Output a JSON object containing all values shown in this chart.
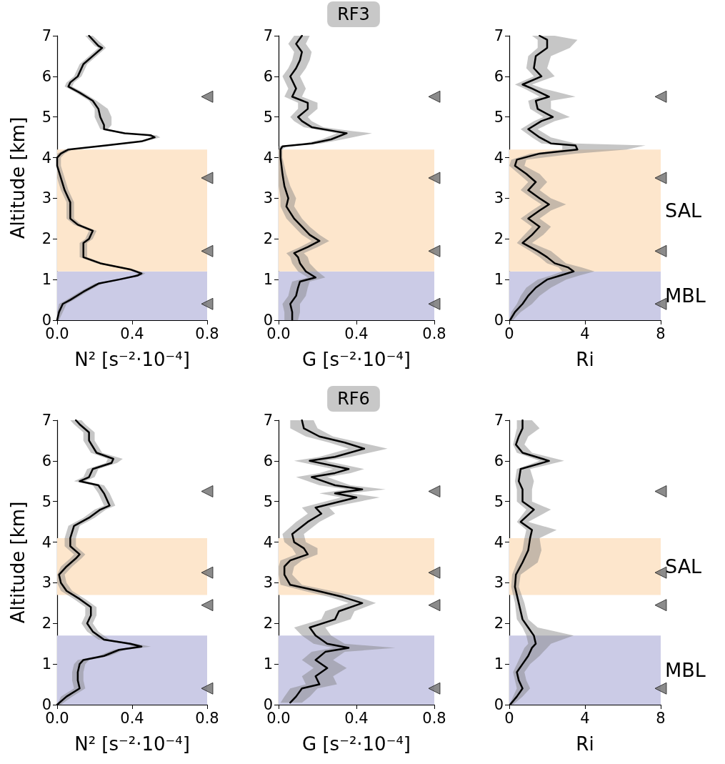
{
  "chart_data": [
    {
      "type": "line",
      "orientation": "horizontal",
      "xlabel": "N² [s⁻²·10⁻⁴]",
      "ylabel": "Altitude [km]",
      "xlim": [
        0,
        0.8
      ],
      "xticks": [
        {
          "value": 0,
          "label": "0.0"
        },
        {
          "value": 0.4,
          "label": "0.4"
        },
        {
          "value": 0.8,
          "label": "0.8"
        }
      ],
      "ylim": [
        0,
        7
      ],
      "yticks": [
        0,
        1,
        2,
        3,
        4,
        5,
        6,
        7
      ],
      "bands": [
        {
          "axis": "y",
          "from": 0,
          "to": 1.2,
          "color": "#cbcbe6"
        },
        {
          "axis": "y",
          "from": 1.2,
          "to": 4.2,
          "color": "#fde6cc"
        }
      ],
      "series": [
        {
          "color": "#000000",
          "x": [
            0,
            0.2,
            0.4,
            0.5,
            0.7,
            0.9,
            1.0,
            1.1,
            1.15,
            1.25,
            1.4,
            1.55,
            1.6,
            1.7,
            1.9,
            2.0,
            2.2,
            2.35,
            2.5,
            2.9,
            3.2,
            3.5,
            3.8,
            4.0,
            4.1,
            4.2,
            4.3,
            4.4,
            4.5,
            4.55,
            4.6,
            4.7,
            4.8,
            5.0,
            5.2,
            5.4,
            5.6,
            5.75,
            5.85,
            6.0,
            6.3,
            6.5,
            6.7,
            6.75,
            7.0
          ],
          "values": [
            0,
            0.01,
            0.03,
            0.07,
            0.14,
            0.22,
            0.33,
            0.43,
            0.45,
            0.39,
            0.23,
            0.14,
            0.14,
            0.14,
            0.14,
            0.17,
            0.19,
            0.11,
            0.07,
            0.07,
            0.04,
            0.02,
            0,
            0,
            0.02,
            0.06,
            0.26,
            0.45,
            0.52,
            0.5,
            0.36,
            0.25,
            0.25,
            0.23,
            0.22,
            0.19,
            0.12,
            0.06,
            0.07,
            0.11,
            0.14,
            0.19,
            0.24,
            0.22,
            0.17
          ],
          "lower": [
            0,
            0,
            0.01,
            0.05,
            0.12,
            0.2,
            0.31,
            0.41,
            0.43,
            0.37,
            0.21,
            0.12,
            0.12,
            0.12,
            0.12,
            0.15,
            0.17,
            0.09,
            0.05,
            0.05,
            0.02,
            0,
            0,
            0,
            0,
            0.04,
            0.24,
            0.43,
            0.5,
            0.48,
            0.34,
            0.23,
            0.22,
            0.2,
            0.2,
            0.17,
            0.1,
            0.04,
            0.05,
            0.09,
            0.12,
            0.17,
            0.22,
            0.2,
            0.15
          ],
          "upper": [
            0.01,
            0.03,
            0.05,
            0.09,
            0.16,
            0.24,
            0.35,
            0.45,
            0.47,
            0.41,
            0.25,
            0.16,
            0.16,
            0.16,
            0.16,
            0.19,
            0.21,
            0.13,
            0.09,
            0.09,
            0.06,
            0.04,
            0.02,
            0.02,
            0.04,
            0.08,
            0.28,
            0.47,
            0.55,
            0.53,
            0.38,
            0.27,
            0.29,
            0.29,
            0.27,
            0.21,
            0.14,
            0.08,
            0.09,
            0.13,
            0.16,
            0.21,
            0.26,
            0.25,
            0.19
          ]
        },
        {
          "type": "scatter",
          "marker": "triangle",
          "color": "#6e6e6e",
          "x": [
            0.4,
            1.7,
            3.5,
            5.5
          ],
          "values": [
            0.8,
            0.8,
            0.8,
            0.8
          ]
        }
      ]
    },
    {
      "type": "line",
      "orientation": "horizontal",
      "title": "RF3",
      "xlabel": "G [s⁻²·10⁻⁴]",
      "xlim": [
        0,
        0.8
      ],
      "xticks": [
        {
          "value": 0,
          "label": "0.0"
        },
        {
          "value": 0.4,
          "label": "0.4"
        },
        {
          "value": 0.8,
          "label": "0.8"
        }
      ],
      "ylim": [
        0,
        7
      ],
      "yticks": [
        0,
        1,
        2,
        3,
        4,
        5,
        6,
        7
      ],
      "bands": [
        {
          "axis": "y",
          "from": 0,
          "to": 1.2,
          "color": "#cbcbe6"
        },
        {
          "axis": "y",
          "from": 1.2,
          "to": 4.2,
          "color": "#fde6cc"
        }
      ],
      "series": [
        {
          "color": "#000000",
          "x": [
            0,
            0.2,
            0.4,
            0.6,
            0.8,
            0.95,
            1.05,
            1.2,
            1.4,
            1.55,
            1.65,
            1.8,
            1.95,
            2.1,
            2.3,
            2.5,
            2.8,
            3.0,
            3.3,
            3.6,
            4.0,
            4.2,
            4.28,
            4.35,
            4.45,
            4.6,
            4.65,
            4.75,
            4.9,
            5.0,
            5.2,
            5.35,
            5.5,
            5.7,
            5.9,
            6.0,
            6.2,
            6.4,
            6.6,
            6.8,
            7.0
          ],
          "values": [
            0.07,
            0.07,
            0.06,
            0.09,
            0.1,
            0.11,
            0.19,
            0.14,
            0.11,
            0.1,
            0.08,
            0.15,
            0.21,
            0.16,
            0.12,
            0.08,
            0.04,
            0.05,
            0.03,
            0.02,
            0.01,
            0.01,
            0.02,
            0.17,
            0.27,
            0.35,
            0.29,
            0.17,
            0.12,
            0.1,
            0.15,
            0.15,
            0.07,
            0.09,
            0.07,
            0.06,
            0.09,
            0.11,
            0.12,
            0.09,
            0.12
          ],
          "lower": [
            0.03,
            0.03,
            0.02,
            0.05,
            0.06,
            0.07,
            0.15,
            0.1,
            0.07,
            0.06,
            0.04,
            0.11,
            0.17,
            0.12,
            0.08,
            0.04,
            0.01,
            0.01,
            0,
            0,
            0,
            0,
            0,
            0.13,
            0.22,
            0.3,
            0.24,
            0.13,
            0.08,
            0.06,
            0.1,
            0.1,
            0.03,
            0.05,
            0.03,
            0.02,
            0.05,
            0.07,
            0.08,
            0.05,
            0.08
          ],
          "upper": [
            0.1,
            0.11,
            0.11,
            0.14,
            0.15,
            0.16,
            0.24,
            0.2,
            0.16,
            0.15,
            0.13,
            0.2,
            0.26,
            0.21,
            0.16,
            0.12,
            0.08,
            0.09,
            0.06,
            0.04,
            0.02,
            0.02,
            0.04,
            0.22,
            0.33,
            0.48,
            0.38,
            0.23,
            0.17,
            0.15,
            0.2,
            0.2,
            0.12,
            0.14,
            0.12,
            0.11,
            0.14,
            0.16,
            0.17,
            0.14,
            0.16
          ]
        },
        {
          "type": "scatter",
          "marker": "triangle",
          "color": "#6e6e6e",
          "x": [
            0.4,
            1.7,
            3.5,
            5.5
          ],
          "values": [
            0.8,
            0.8,
            0.8,
            0.8
          ]
        }
      ]
    },
    {
      "type": "line",
      "orientation": "horizontal",
      "xlabel": "Ri",
      "xlim": [
        0,
        8
      ],
      "xticks": [
        0,
        4,
        8
      ],
      "ylim": [
        0,
        7
      ],
      "yticks": [
        0,
        1,
        2,
        3,
        4,
        5,
        6,
        7
      ],
      "bands": [
        {
          "axis": "y",
          "from": 0,
          "to": 1.2,
          "label": "MBL",
          "color": "#cbcbe6"
        },
        {
          "axis": "y",
          "from": 1.2,
          "to": 4.2,
          "label": "SAL",
          "color": "#fde6cc"
        }
      ],
      "series": [
        {
          "color": "#000000",
          "x": [
            0,
            0.2,
            0.4,
            0.6,
            0.8,
            1.0,
            1.1,
            1.2,
            1.3,
            1.4,
            1.55,
            1.7,
            1.9,
            2.1,
            2.3,
            2.5,
            2.7,
            2.85,
            3.0,
            3.2,
            3.4,
            3.6,
            3.8,
            3.95,
            4.1,
            4.2,
            4.3,
            4.35,
            4.5,
            4.7,
            4.9,
            5.0,
            5.2,
            5.4,
            5.5,
            5.7,
            5.8,
            6.0,
            6.2,
            6.5,
            6.7,
            6.9,
            7.0
          ],
          "values": [
            0.04,
            0.3,
            0.7,
            1.0,
            1.4,
            2.0,
            2.7,
            3.4,
            3.1,
            2.4,
            2.0,
            1.5,
            0.7,
            1.2,
            1.6,
            1.0,
            1.6,
            2.1,
            1.6,
            1.0,
            1.4,
            0.9,
            0.3,
            0.4,
            1.6,
            3.6,
            3.5,
            2.2,
            1.6,
            1.0,
            1.7,
            2.3,
            1.5,
            1.4,
            2.1,
            1.2,
            0.7,
            1.7,
            1.3,
            1.4,
            2.0,
            2.0,
            1.6
          ],
          "lower": [
            0,
            0.1,
            0.4,
            0.6,
            0.9,
            1.5,
            2.2,
            2.8,
            2.6,
            2.0,
            1.6,
            1.1,
            0.4,
            0.8,
            1.2,
            0.6,
            1.2,
            1.7,
            1.2,
            0.6,
            1.0,
            0.5,
            0,
            0.1,
            1.1,
            2.8,
            2.8,
            1.7,
            1.2,
            0.6,
            1.3,
            1.8,
            1.1,
            1.0,
            1.6,
            0.8,
            0.3,
            1.3,
            0.9,
            1.0,
            1.5,
            1.5,
            1.2
          ],
          "upper": [
            0.2,
            0.6,
            1.2,
            1.6,
            2.2,
            3.0,
            3.7,
            4.5,
            3.8,
            3.0,
            2.6,
            2.2,
            1.2,
            1.8,
            2.2,
            1.6,
            2.2,
            3.0,
            2.2,
            1.6,
            2.0,
            1.6,
            0.8,
            0.9,
            3.5,
            6.2,
            7.2,
            3.5,
            2.2,
            1.5,
            2.4,
            3.2,
            2.2,
            2.2,
            3.5,
            1.8,
            1.2,
            2.4,
            2.0,
            2.2,
            3.2,
            3.6,
            2.4
          ]
        },
        {
          "type": "scatter",
          "marker": "triangle",
          "color": "#6e6e6e",
          "x": [
            0.4,
            1.7,
            3.5,
            5.5
          ],
          "values": [
            8,
            8,
            8,
            8
          ]
        }
      ]
    },
    {
      "type": "line",
      "orientation": "horizontal",
      "xlabel": "N² [s⁻²·10⁻⁴]",
      "ylabel": "Altitude [km]",
      "xlim": [
        0,
        0.8
      ],
      "xticks": [
        {
          "value": 0,
          "label": "0.0"
        },
        {
          "value": 0.4,
          "label": "0.4"
        },
        {
          "value": 0.8,
          "label": "0.8"
        }
      ],
      "ylim": [
        0,
        7
      ],
      "yticks": [
        0,
        1,
        2,
        3,
        4,
        5,
        6,
        7
      ],
      "bands": [
        {
          "axis": "y",
          "from": 0,
          "to": 1.7,
          "color": "#cbcbe6"
        },
        {
          "axis": "y",
          "from": 2.7,
          "to": 4.1,
          "color": "#fde6cc"
        }
      ],
      "series": [
        {
          "color": "#000000",
          "x": [
            0,
            0.2,
            0.4,
            0.6,
            0.8,
            1.0,
            1.1,
            1.2,
            1.35,
            1.43,
            1.5,
            1.6,
            1.8,
            2.0,
            2.2,
            2.4,
            2.6,
            2.8,
            3.0,
            3.2,
            3.4,
            3.6,
            3.7,
            3.9,
            4.1,
            4.4,
            4.6,
            4.8,
            4.9,
            5.1,
            5.2,
            5.4,
            5.5,
            5.6,
            5.8,
            5.95,
            6.05,
            6.2,
            6.5,
            6.7,
            6.9,
            7.0
          ],
          "values": [
            0,
            0.05,
            0.12,
            0.11,
            0.11,
            0.12,
            0.14,
            0.25,
            0.33,
            0.45,
            0.39,
            0.25,
            0.19,
            0.16,
            0.18,
            0.18,
            0.12,
            0.05,
            0.02,
            0.01,
            0.05,
            0.1,
            0.12,
            0.07,
            0.07,
            0.09,
            0.17,
            0.23,
            0.28,
            0.26,
            0.25,
            0.22,
            0.12,
            0.17,
            0.19,
            0.29,
            0.3,
            0.21,
            0.17,
            0.17,
            0.12,
            0.1
          ],
          "lower": [
            0,
            0.02,
            0.09,
            0.08,
            0.08,
            0.09,
            0.11,
            0.22,
            0.3,
            0.41,
            0.36,
            0.22,
            0.16,
            0.13,
            0.15,
            0.15,
            0.09,
            0.02,
            0,
            0,
            0.02,
            0.07,
            0.09,
            0.04,
            0.04,
            0.06,
            0.14,
            0.2,
            0.25,
            0.23,
            0.22,
            0.19,
            0.09,
            0.14,
            0.16,
            0.26,
            0.27,
            0.18,
            0.14,
            0.14,
            0.09,
            0.07
          ],
          "upper": [
            0.02,
            0.08,
            0.15,
            0.14,
            0.14,
            0.15,
            0.17,
            0.28,
            0.36,
            0.5,
            0.42,
            0.28,
            0.22,
            0.19,
            0.21,
            0.21,
            0.15,
            0.08,
            0.05,
            0.04,
            0.08,
            0.13,
            0.15,
            0.1,
            0.1,
            0.12,
            0.2,
            0.26,
            0.31,
            0.29,
            0.28,
            0.25,
            0.15,
            0.2,
            0.22,
            0.32,
            0.35,
            0.24,
            0.2,
            0.2,
            0.15,
            0.13
          ]
        },
        {
          "type": "scatter",
          "marker": "triangle",
          "color": "#6e6e6e",
          "x": [
            0.4,
            2.45,
            3.25,
            5.25
          ],
          "values": [
            0.8,
            0.8,
            0.8,
            0.8
          ]
        }
      ]
    },
    {
      "type": "line",
      "orientation": "horizontal",
      "title": "RF6",
      "xlabel": "G [s⁻²·10⁻⁴]",
      "xlim": [
        0,
        0.8
      ],
      "xticks": [
        {
          "value": 0,
          "label": "0.0"
        },
        {
          "value": 0.4,
          "label": "0.4"
        },
        {
          "value": 0.8,
          "label": "0.8"
        }
      ],
      "ylim": [
        0,
        7
      ],
      "yticks": [
        0,
        1,
        2,
        3,
        4,
        5,
        6,
        7
      ],
      "bands": [
        {
          "axis": "y",
          "from": 0,
          "to": 1.7,
          "color": "#cbcbe6"
        },
        {
          "axis": "y",
          "from": 2.7,
          "to": 4.1,
          "color": "#fde6cc"
        }
      ],
      "series": [
        {
          "color": "#000000",
          "x": [
            0.05,
            0.2,
            0.4,
            0.5,
            0.7,
            0.9,
            1.1,
            1.3,
            1.4,
            1.5,
            1.7,
            1.9,
            2.1,
            2.3,
            2.5,
            2.65,
            2.8,
            2.95,
            3.2,
            3.4,
            3.55,
            3.7,
            3.85,
            4.0,
            4.2,
            4.5,
            4.7,
            4.85,
            5.1,
            5.2,
            5.3,
            5.4,
            5.6,
            5.7,
            5.8,
            6.0,
            6.1,
            6.3,
            6.45,
            6.6,
            6.8,
            7.0
          ],
          "values": [
            0.06,
            0.09,
            0.12,
            0.21,
            0.19,
            0.25,
            0.19,
            0.24,
            0.36,
            0.25,
            0.19,
            0.16,
            0.29,
            0.31,
            0.43,
            0.33,
            0.2,
            0.06,
            0.03,
            0.03,
            0.06,
            0.15,
            0.13,
            0.08,
            0.07,
            0.15,
            0.22,
            0.19,
            0.4,
            0.29,
            0.43,
            0.29,
            0.17,
            0.29,
            0.36,
            0.16,
            0.29,
            0.44,
            0.34,
            0.21,
            0.13,
            0.12
          ],
          "lower": [
            0.01,
            0.03,
            0.06,
            0.14,
            0.12,
            0.18,
            0.12,
            0.17,
            0.28,
            0.18,
            0.12,
            0.08,
            0.22,
            0.24,
            0.36,
            0.26,
            0.13,
            0.01,
            0,
            0,
            0.01,
            0.09,
            0.07,
            0.03,
            0.02,
            0.09,
            0.15,
            0.12,
            0.32,
            0.21,
            0.35,
            0.21,
            0.09,
            0.21,
            0.28,
            0.08,
            0.21,
            0.36,
            0.26,
            0.14,
            0.06,
            0.06
          ],
          "upper": [
            0.12,
            0.16,
            0.2,
            0.3,
            0.28,
            0.35,
            0.28,
            0.34,
            0.6,
            0.34,
            0.27,
            0.24,
            0.37,
            0.39,
            0.5,
            0.41,
            0.27,
            0.12,
            0.07,
            0.08,
            0.12,
            0.2,
            0.2,
            0.14,
            0.13,
            0.21,
            0.29,
            0.26,
            0.52,
            0.37,
            0.55,
            0.37,
            0.25,
            0.37,
            0.44,
            0.24,
            0.37,
            0.56,
            0.42,
            0.28,
            0.2,
            0.18
          ]
        },
        {
          "type": "scatter",
          "marker": "triangle",
          "color": "#6e6e6e",
          "x": [
            0.4,
            2.45,
            3.25,
            5.25
          ],
          "values": [
            0.8,
            0.8,
            0.8,
            0.8
          ]
        }
      ]
    },
    {
      "type": "line",
      "orientation": "horizontal",
      "xlabel": "Ri",
      "xlim": [
        0,
        8
      ],
      "xticks": [
        0,
        4,
        8
      ],
      "ylim": [
        0,
        7
      ],
      "yticks": [
        0,
        1,
        2,
        3,
        4,
        5,
        6,
        7
      ],
      "bands": [
        {
          "axis": "y",
          "from": 0,
          "to": 1.7,
          "label": "MBL",
          "color": "#cbcbe6"
        },
        {
          "axis": "y",
          "from": 2.7,
          "to": 4.1,
          "label": "SAL",
          "color": "#fde6cc"
        }
      ],
      "series": [
        {
          "color": "#000000",
          "x": [
            0,
            0.2,
            0.4,
            0.6,
            0.8,
            1.0,
            1.2,
            1.4,
            1.5,
            1.7,
            1.9,
            2.1,
            2.5,
            2.9,
            3.2,
            3.5,
            3.8,
            4.1,
            4.3,
            4.5,
            4.8,
            5.0,
            5.3,
            5.5,
            5.8,
            6.0,
            6.2,
            6.4,
            6.6,
            6.8,
            7.0
          ],
          "values": [
            0.04,
            0.4,
            0.7,
            0.5,
            0.4,
            0.7,
            1.0,
            1.2,
            1.4,
            1.3,
            1.0,
            0.7,
            0.5,
            0.3,
            0.35,
            0.7,
            1.0,
            1.1,
            1.2,
            0.6,
            1.3,
            0.7,
            0.7,
            0.5,
            0.6,
            2.1,
            0.7,
            0.35,
            0.5,
            0.7,
            0.7
          ],
          "lower": [
            0,
            0.2,
            0.4,
            0.3,
            0.2,
            0.4,
            0.6,
            0.8,
            1.0,
            0.9,
            0.7,
            0.4,
            0.3,
            0.1,
            0.15,
            0.4,
            0.7,
            0.8,
            0.9,
            0.4,
            0.9,
            0.4,
            0.4,
            0.3,
            0.4,
            1.6,
            0.4,
            0.2,
            0.3,
            0.4,
            0.4
          ],
          "upper": [
            0.2,
            0.7,
            1.1,
            0.9,
            0.8,
            1.1,
            1.6,
            2.0,
            2.2,
            3.4,
            1.5,
            1.0,
            0.8,
            0.5,
            0.6,
            1.5,
            1.7,
            1.6,
            2.5,
            1.0,
            2.2,
            1.2,
            1.2,
            1.3,
            1.1,
            2.9,
            1.2,
            0.8,
            1.0,
            1.6,
            1.2
          ]
        },
        {
          "type": "scatter",
          "marker": "triangle",
          "color": "#6e6e6e",
          "x": [
            0.4,
            2.45,
            3.25,
            5.25
          ],
          "values": [
            8,
            8,
            8,
            8
          ]
        }
      ]
    }
  ]
}
